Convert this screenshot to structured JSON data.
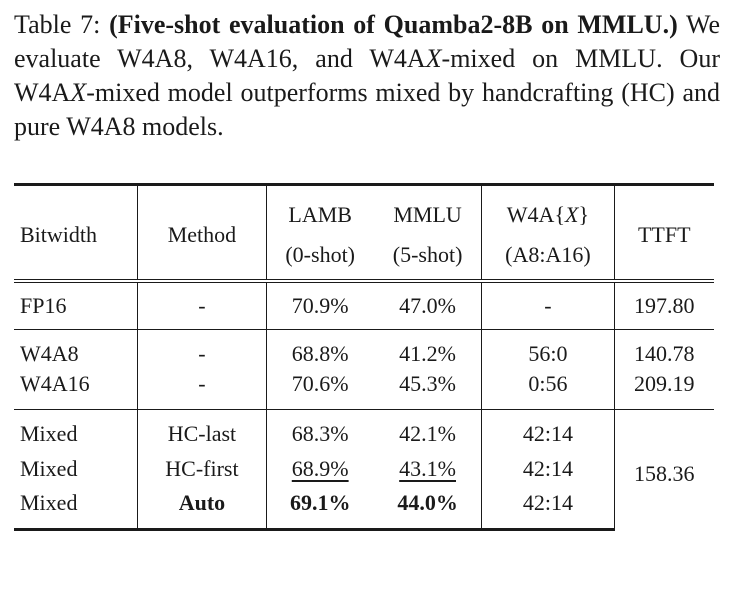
{
  "caption": {
    "prefix": "Table 7:",
    "bold_title": "(Five-shot evaluation of Quamba2-8B on MMLU.)",
    "text_1": "We evaluate W4A8, W4A16, and W4A",
    "text_1_it": "X",
    "text_2": "-mixed on MMLU. Our W4A",
    "text_2_it": "X",
    "text_3": "-mixed model outperforms mixed by handcrafting (HC) and pure W4A8 models."
  },
  "table": {
    "headers": {
      "bitwidth": "Bitwidth",
      "method": "Method",
      "lamb_line1": "LAMB",
      "lamb_line2": "(0-shot)",
      "mmlu_line1": "MMLU",
      "mmlu_line2": "(5-shot)",
      "w4ax_pre": "W4A{",
      "w4ax_it": "X",
      "w4ax_post": "}",
      "w4ax_line2": "(A8:A16)",
      "ttft": "TTFT"
    },
    "rows": [
      {
        "bitwidth": "FP16",
        "method": "-",
        "lamb": "70.9%",
        "mmlu": "47.0%",
        "w4ax": "-",
        "ttft": "197.80"
      },
      {
        "bitwidth": "W4A8",
        "method": "-",
        "lamb": "68.8%",
        "mmlu": "41.2%",
        "w4ax": "56:0",
        "ttft": "140.78"
      },
      {
        "bitwidth": "W4A16",
        "method": "-",
        "lamb": "70.6%",
        "mmlu": "45.3%",
        "w4ax": "0:56",
        "ttft": "209.19"
      },
      {
        "bitwidth": "Mixed",
        "method": "HC-last",
        "lamb": "68.3%",
        "mmlu": "42.1%",
        "w4ax": "42:14",
        "ttft": "158.36"
      },
      {
        "bitwidth": "Mixed",
        "method": "HC-first",
        "lamb": "68.9%",
        "mmlu": "43.1%",
        "w4ax": "42:14"
      },
      {
        "bitwidth": "Mixed",
        "method": "Auto",
        "lamb": "69.1%",
        "mmlu": "44.0%",
        "w4ax": "42:14"
      }
    ]
  }
}
